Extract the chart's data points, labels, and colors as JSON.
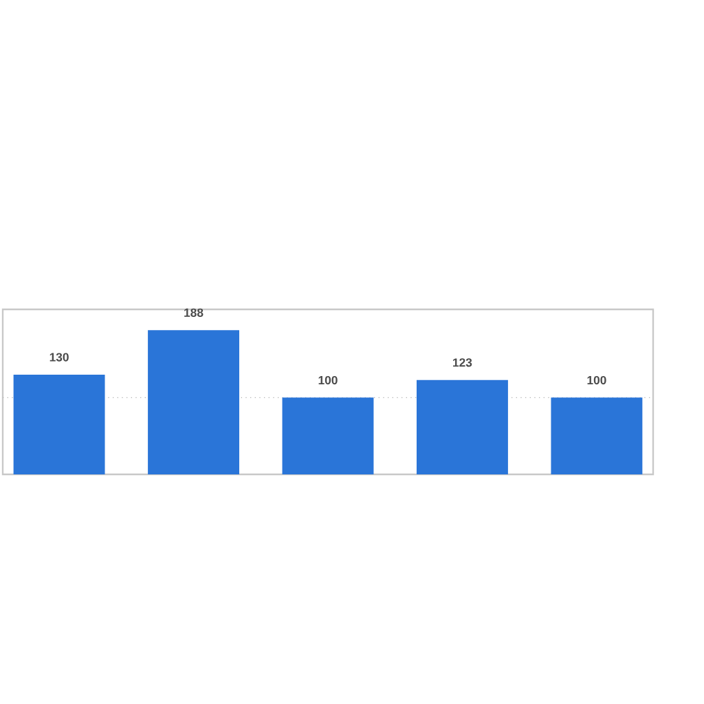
{
  "chart_data": {
    "type": "bar",
    "categories": [
      null,
      null,
      null,
      null,
      null
    ],
    "values": [
      130,
      188,
      100,
      123,
      100
    ],
    "color": "#2a75d8",
    "data_labels": true,
    "ylim": [
      0,
      215
    ],
    "ref_lines": [
      {
        "axis": "y",
        "value": 100,
        "color": "#b4b4b4",
        "line_style": "dotted"
      }
    ]
  }
}
